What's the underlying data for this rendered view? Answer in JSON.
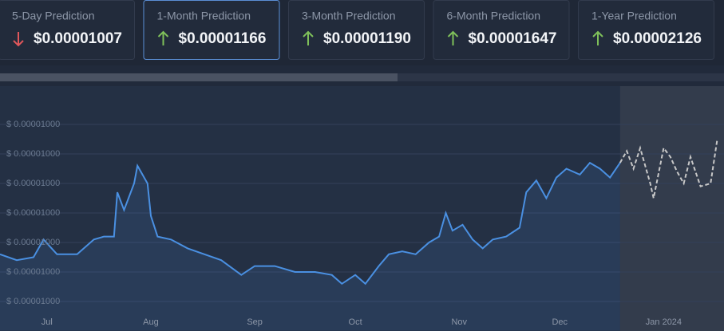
{
  "cards": [
    {
      "label": "5-Day Prediction",
      "value": "$0.00001007",
      "trend": "down"
    },
    {
      "label": "1-Month Prediction",
      "value": "$0.00001166",
      "trend": "up",
      "selected": true
    },
    {
      "label": "3-Month Prediction",
      "value": "$0.00001190",
      "trend": "up"
    },
    {
      "label": "6-Month Prediction",
      "value": "$0.00001647",
      "trend": "up"
    },
    {
      "label": "1-Year Prediction",
      "value": "$0.00002126",
      "trend": "up"
    }
  ],
  "chart_data": {
    "type": "line",
    "series": [
      {
        "color": "#4a90e2",
        "dashed": false,
        "x": [
          -14,
          -9,
          -4,
          -1,
          3,
          9,
          14,
          17,
          20,
          21,
          23,
          26,
          27,
          30,
          31,
          33,
          37,
          42,
          47,
          52,
          58,
          62,
          68,
          74,
          80,
          85,
          88,
          92,
          95,
          99,
          102,
          106,
          110,
          114,
          117,
          119,
          121,
          124,
          127,
          130,
          133,
          137,
          141,
          143,
          146,
          149,
          152,
          155,
          159,
          162,
          165,
          168,
          171
        ],
        "values": [
          9.9996e-06,
          9.9994e-06,
          9.9995e-06,
          1.00001e-05,
          9.9996e-06,
          9.9996e-06,
          1.00001e-05,
          1.00002e-05,
          1.00002e-05,
          1.00017e-05,
          1.00011e-05,
          1.0002e-05,
          1.00026e-05,
          1.0002e-05,
          1.00009e-05,
          1.00002e-05,
          1.00001e-05,
          9.9998e-06,
          9.9996e-06,
          9.9994e-06,
          9.9989e-06,
          9.9992e-06,
          9.9992e-06,
          9.999e-06,
          9.999e-06,
          9.9989e-06,
          9.9986e-06,
          9.9989e-06,
          9.9986e-06,
          9.9992e-06,
          9.9996e-06,
          9.9997e-06,
          9.9996e-06,
          1e-05,
          1.00002e-05,
          1.0001e-05,
          1.00004e-05,
          1.00006e-05,
          1.00001e-05,
          9.9998e-06,
          1.00001e-05,
          1.00002e-05,
          1.00005e-05,
          1.00017e-05,
          1.00021e-05,
          1.00015e-05,
          1.00022e-05,
          1.00025e-05,
          1.00023e-05,
          1.00027e-05,
          1.00025e-05,
          1.00022e-05,
          1.00027e-05
        ]
      },
      {
        "color": "#c8c8c8",
        "dashed": true,
        "x": [
          171,
          173,
          175,
          177,
          180,
          181,
          184,
          186,
          188,
          190,
          192,
          195,
          198,
          200
        ],
        "values": [
          1.00027e-05,
          1.00031e-05,
          1.00025e-05,
          1.00032e-05,
          1.0002e-05,
          1.00015e-05,
          1.00032e-05,
          1.00029e-05,
          1.00024e-05,
          1.0002e-05,
          1.00029e-05,
          1.00019e-05,
          1.0002e-05,
          1.00035e-05
        ]
      }
    ],
    "xlim": [
      -14,
      202
    ],
    "xticks": [
      {
        "value": 0,
        "label": "Jul"
      },
      {
        "value": 31,
        "label": "Aug"
      },
      {
        "value": 62,
        "label": "Sep"
      },
      {
        "value": 92,
        "label": "Oct"
      },
      {
        "value": 123,
        "label": "Nov"
      },
      {
        "value": 153,
        "label": "Dec"
      },
      {
        "value": 184,
        "label": "Jan 2024"
      }
    ],
    "ylim": [
      9.9975e-06,
      1.00045e-05
    ],
    "yticks": [
      {
        "value": 1.0004e-05,
        "label": "$ 0.00001000"
      },
      {
        "value": 1.0003e-05,
        "label": "$ 0.00001000"
      },
      {
        "value": 1.0002e-05,
        "label": "$ 0.00001000"
      },
      {
        "value": 1.0001e-05,
        "label": "$ 0.00001000"
      },
      {
        "value": 1e-05,
        "label": "$ 0.00001000"
      },
      {
        "value": 9.999e-06,
        "label": "$ 0.00001000"
      },
      {
        "value": 9.998e-06,
        "label": "$ 0.00001000"
      }
    ],
    "grid": true
  }
}
